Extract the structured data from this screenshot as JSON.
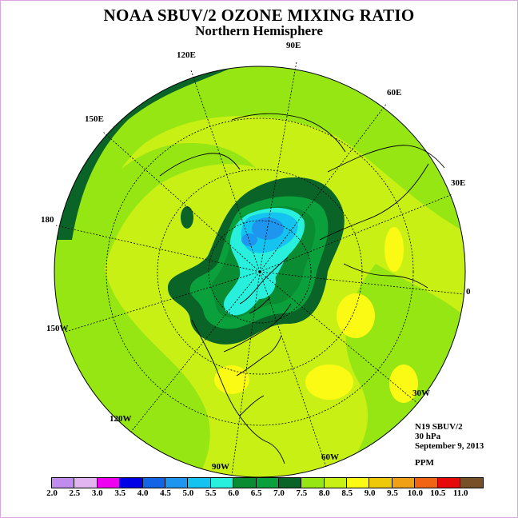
{
  "title": "NOAA SBUV/2 OZONE MIXING RATIO",
  "subtitle": "Northern Hemisphere",
  "info": {
    "instrument": "N19 SBUV/2",
    "level": "30 hPa",
    "date": "September 9, 2013"
  },
  "units": "PPM",
  "longitude_labels": [
    "90E",
    "120E",
    "60E",
    "150E",
    "30E",
    "180",
    "0",
    "150W",
    "30W",
    "120W",
    "60W",
    "90W"
  ],
  "colorbar": {
    "ticks": [
      "2.0",
      "2.5",
      "3.0",
      "3.5",
      "4.0",
      "4.5",
      "5.0",
      "5.5",
      "6.0",
      "6.5",
      "7.0",
      "7.5",
      "8.0",
      "8.5",
      "9.0",
      "9.5",
      "10.0",
      "10.5",
      "11.0"
    ],
    "colors": [
      "#c08cf0",
      "#e2b4f0",
      "#f000f0",
      "#0000e6",
      "#1464e6",
      "#1e96f0",
      "#14c3f0",
      "#28f0dc",
      "#0a8c32",
      "#0aa03c",
      "#0a6428",
      "#96e614",
      "#c8f014",
      "#fafa14",
      "#f0c80a",
      "#f0a014",
      "#f06414",
      "#e60a0a",
      "#785028"
    ]
  },
  "colors": {
    "land_outline": "#000000",
    "graticule": "#000000",
    "frame": "#d9a6e0"
  }
}
